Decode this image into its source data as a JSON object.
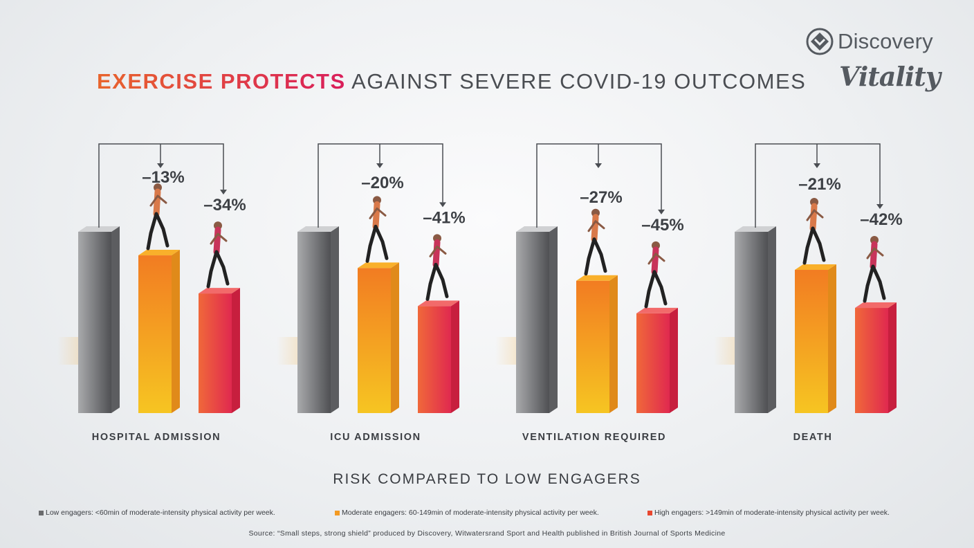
{
  "header": {
    "title_bold": "EXERCISE PROTECTS",
    "title_rest": "AGAINST SEVERE COVID-19 OUTCOMES"
  },
  "logo": {
    "brand": "Discovery",
    "program": "Vitality"
  },
  "chart_data": {
    "type": "bar",
    "categories": [
      "HOSPITAL ADMISSION",
      "ICU ADMISSION",
      "VENTILATION REQUIRED",
      "DEATH"
    ],
    "series": [
      {
        "name": "Low engagers",
        "values": [
          100,
          100,
          100,
          100
        ],
        "color": "#8a8b8d"
      },
      {
        "name": "Moderate engagers",
        "values": [
          87,
          80,
          73,
          79
        ],
        "color": "#f39a22"
      },
      {
        "name": "High engagers",
        "values": [
          66,
          59,
          55,
          58
        ],
        "color": "#e8354a"
      }
    ],
    "labels": {
      "moderate": [
        "–13%",
        "–20%",
        "–27%",
        "–21%"
      ],
      "high": [
        "–34%",
        "–41%",
        "–45%",
        "–42%"
      ]
    },
    "xlabel": "RISK COMPARED TO LOW ENGAGERS",
    "ylabel": "",
    "grid": false
  },
  "legend": [
    {
      "text": "Low engagers: <60min of moderate-intensity physical activity per week.",
      "color": "#6a6b6d"
    },
    {
      "text": "Moderate engagers: 60-149min of moderate-intensity physical activity per week.",
      "color": "#f39a22"
    },
    {
      "text": "High engagers: >149min of moderate-intensity physical activity per week.",
      "color": "#e8472f"
    }
  ],
  "source": "Source: “Small steps, strong shield” produced by Discovery, Witwatersrand Sport and Health published in British Journal of Sports Medicine"
}
